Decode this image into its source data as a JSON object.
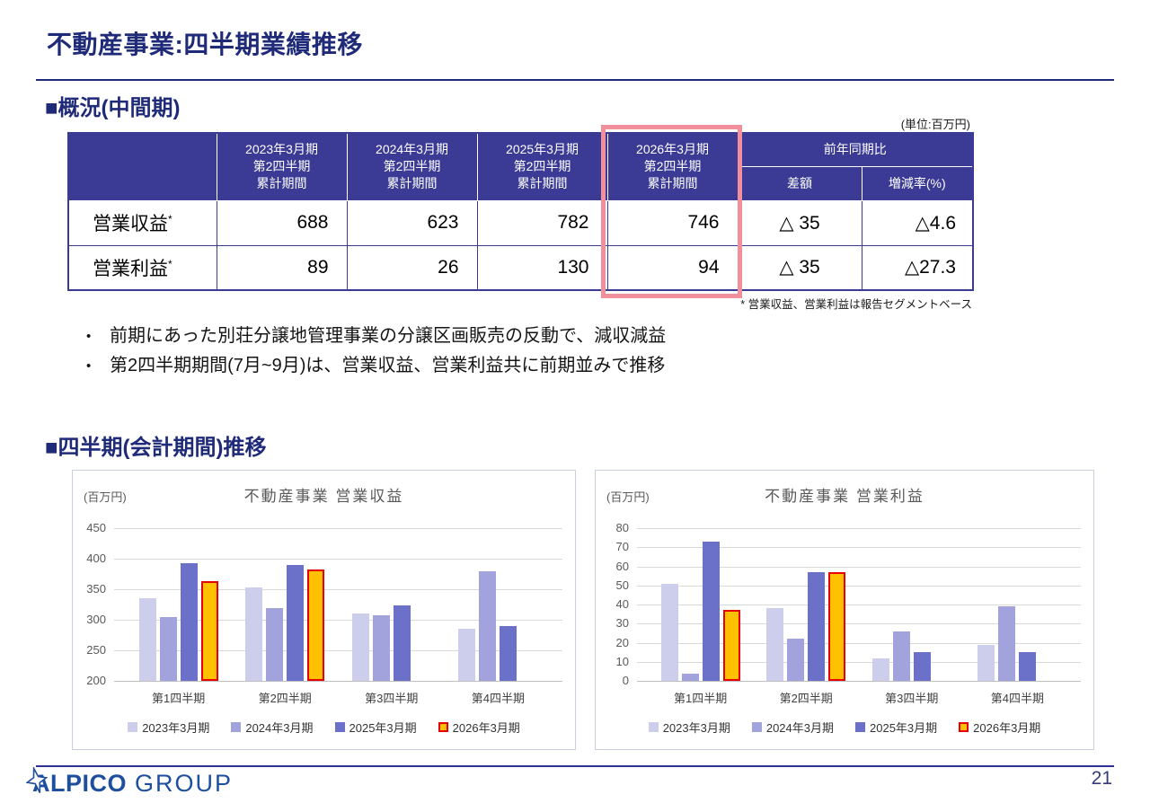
{
  "page": {
    "title": "不動産事業:四半期業績推移",
    "page_number": "21"
  },
  "section1": {
    "heading": "■概況(中間期)",
    "unit_label": "(単位:百万円)",
    "table": {
      "col_headers": [
        "2023年3月期\n第2四半期\n累計期間",
        "2024年3月期\n第2四半期\n累計期間",
        "2025年3月期\n第2四半期\n累計期間",
        "2026年3月期\n第2四半期\n累計期間"
      ],
      "yoy_header": "前年同期比",
      "yoy_sub_diff": "差額",
      "yoy_sub_rate": "増減率(%)",
      "rows": [
        {
          "label": "営業収益",
          "sup": "*",
          "values": [
            "688",
            "623",
            "782",
            "746"
          ],
          "diff": "△ 35",
          "rate": "△4.6"
        },
        {
          "label": "営業利益",
          "sup": "*",
          "values": [
            "89",
            "26",
            "130",
            "94"
          ],
          "diff": "△ 35",
          "rate": "△27.3"
        }
      ]
    },
    "footnote": "* 営業収益、営業利益は報告セグメントベース",
    "bullet_char": "•",
    "bullets": [
      "前期にあった別荘分譲地管理事業の分譲区画販売の反動で、減収減益",
      "第2四半期期間(7月~9月)は、営業収益、営業利益共に前期並みで推移"
    ]
  },
  "section2": {
    "heading": "■四半期(会計期間)推移"
  },
  "chart_data": [
    {
      "type": "bar",
      "title": "不動産事業 営業収益",
      "unit_label": "(百万円)",
      "ylim": [
        200,
        450
      ],
      "ytick_step": 50,
      "grid": true,
      "legend_position": "bottom",
      "categories": [
        "第1四半期",
        "第2四半期",
        "第3四半期",
        "第4四半期"
      ],
      "series": [
        {
          "name": "2023年3月期",
          "color": "#cdcdec",
          "values": [
            335,
            353,
            311,
            286
          ]
        },
        {
          "name": "2024年3月期",
          "color": "#a2a3dc",
          "values": [
            304,
            319,
            308,
            380
          ]
        },
        {
          "name": "2025年3月期",
          "color": "#6b70c9",
          "values": [
            393,
            389,
            324,
            289
          ]
        },
        {
          "name": "2026年3月期",
          "color": "#ffc000",
          "border": "#e60000",
          "values": [
            363,
            383,
            null,
            null
          ]
        }
      ]
    },
    {
      "type": "bar",
      "title": "不動産事業 営業利益",
      "unit_label": "(百万円)",
      "ylim": [
        0,
        80
      ],
      "ytick_step": 10,
      "grid": true,
      "legend_position": "bottom",
      "categories": [
        "第1四半期",
        "第2四半期",
        "第3四半期",
        "第4四半期"
      ],
      "series": [
        {
          "name": "2023年3月期",
          "color": "#cdcdec",
          "values": [
            51,
            38,
            12,
            19
          ]
        },
        {
          "name": "2024年3月期",
          "color": "#a2a3dc",
          "values": [
            4,
            22,
            26,
            39
          ]
        },
        {
          "name": "2025年3月期",
          "color": "#6b70c9",
          "values": [
            73,
            57,
            15,
            15
          ]
        },
        {
          "name": "2026年3月期",
          "color": "#ffc000",
          "border": "#e60000",
          "values": [
            37,
            57,
            null,
            null
          ]
        }
      ]
    }
  ],
  "footer": {
    "logo_alpico": "ALPICO",
    "logo_group": "GROUP"
  },
  "colors": {
    "navy_heading": "#1f2a78",
    "table_header_bg": "#3b3b96",
    "highlight_yellow": "#ffffa6",
    "highlight_pink": "#f18f9d",
    "logo_blue": "#1d4f9e"
  }
}
